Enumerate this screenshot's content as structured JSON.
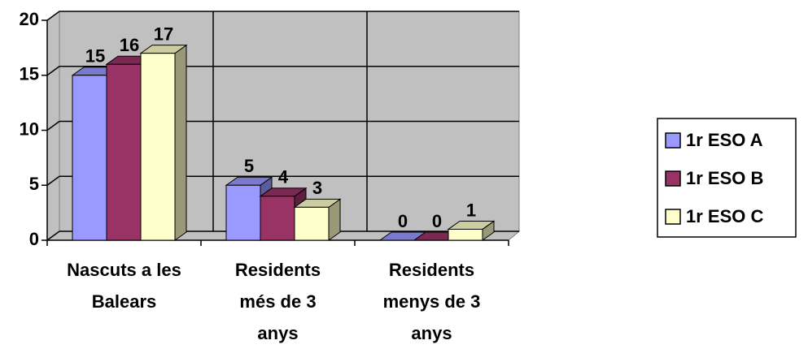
{
  "chart_data": {
    "type": "bar",
    "categories": [
      "Nascuts a les Balears",
      "Residents més de 3 anys",
      "Residents menys de 3 anys"
    ],
    "series": [
      {
        "name": "1r ESO A",
        "color": "#9999ff",
        "values": [
          15,
          5,
          0
        ]
      },
      {
        "name": "1r ESO B",
        "color": "#993366",
        "values": [
          16,
          4,
          0
        ]
      },
      {
        "name": "1r ESO C",
        "color": "#ffffcc",
        "values": [
          17,
          3,
          1
        ]
      }
    ],
    "ylim": [
      0,
      20
    ],
    "yticks": [
      0,
      5,
      10,
      15,
      20
    ],
    "grid": true,
    "legend": "right",
    "three_d": true
  }
}
